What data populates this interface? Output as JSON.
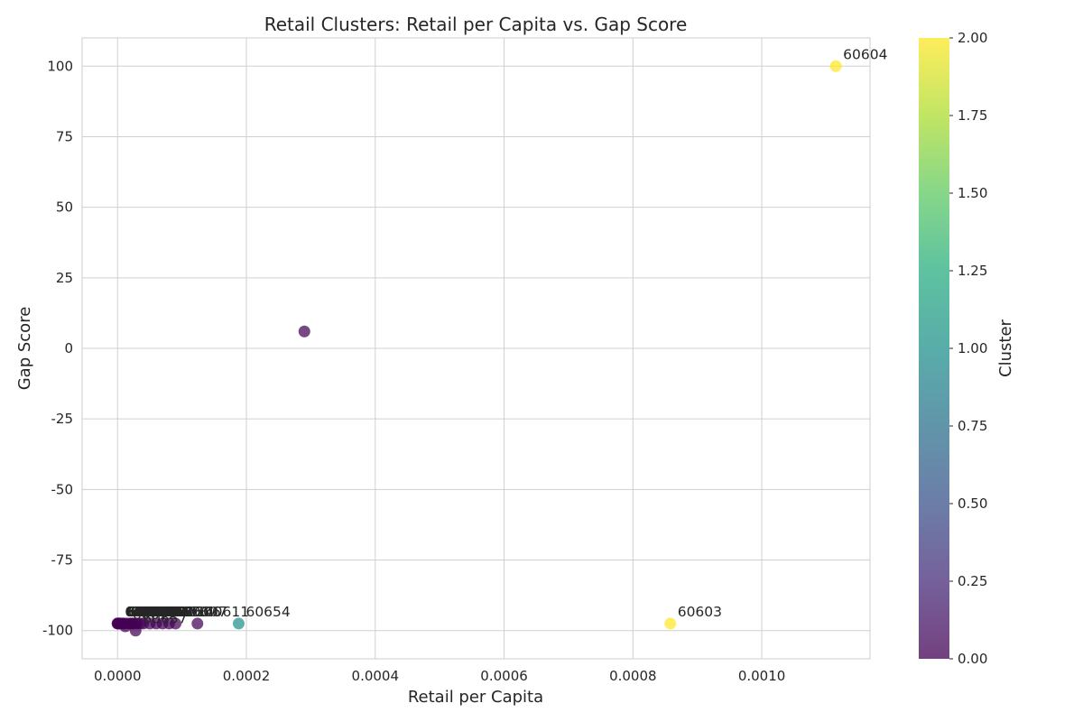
{
  "chart_data": {
    "type": "scatter",
    "title": "Retail Clusters: Retail per Capita vs. Gap Score",
    "xlabel": "Retail per Capita",
    "ylabel": "Gap Score",
    "xlim": [
      -5.5e-05,
      0.001168
    ],
    "ylim": [
      -110,
      110
    ],
    "x_ticks": [
      0.0,
      0.0002,
      0.0004,
      0.0006,
      0.0008,
      0.001
    ],
    "x_tick_labels": [
      "0.0000",
      "0.0002",
      "0.0004",
      "0.0006",
      "0.0008",
      "0.0010"
    ],
    "y_ticks": [
      -100,
      -75,
      -50,
      -25,
      0,
      25,
      50,
      75,
      100
    ],
    "y_tick_labels": [
      "-100",
      "-75",
      "-50",
      "-25",
      "0",
      "25",
      "50",
      "75",
      "100"
    ],
    "grid": true,
    "colorbar": {
      "label": "Cluster",
      "range": [
        0,
        2
      ],
      "ticks": [
        0.0,
        0.25,
        0.5,
        0.75,
        1.0,
        1.25,
        1.5,
        1.75,
        2.0
      ],
      "tick_labels": [
        "0.00",
        "0.25",
        "0.50",
        "0.75",
        "1.00",
        "1.25",
        "1.50",
        "1.75",
        "2.00"
      ],
      "colormap": "viridis"
    },
    "points": [
      {
        "x": 0.001115,
        "y": 100,
        "cluster": 2,
        "label": "60604"
      },
      {
        "x": 0.000858,
        "y": -97.5,
        "cluster": 2,
        "label": "60603"
      },
      {
        "x": 0.000188,
        "y": -97.5,
        "cluster": 1,
        "label": "60654"
      },
      {
        "x": 0.00029,
        "y": 6,
        "cluster": 0,
        "label": ""
      },
      {
        "x": 0.000124,
        "y": -97.5,
        "cluster": 0,
        "label": "60611"
      },
      {
        "x": 9e-05,
        "y": -97.5,
        "cluster": 0,
        "label": "60607"
      },
      {
        "x": 8e-05,
        "y": -97.5,
        "cluster": 0,
        "label": "60606"
      },
      {
        "x": 7e-05,
        "y": -97.5,
        "cluster": 0,
        "label": "60614"
      },
      {
        "x": 6e-05,
        "y": -97.5,
        "cluster": 0,
        "label": "60610"
      },
      {
        "x": 5e-05,
        "y": -97.5,
        "cluster": 0,
        "label": "60605"
      },
      {
        "x": 4e-05,
        "y": -97.5,
        "cluster": 0,
        "label": "60601"
      },
      {
        "x": 3.5e-05,
        "y": -97.5,
        "cluster": 0,
        "label": "60602"
      },
      {
        "x": 3e-05,
        "y": -97.5,
        "cluster": 0,
        "label": "60622"
      },
      {
        "x": 2.8e-05,
        "y": -100,
        "cluster": 0,
        "label": "60657"
      },
      {
        "x": 2.5e-05,
        "y": -97.5,
        "cluster": 0,
        "label": "60642"
      },
      {
        "x": 2.2e-05,
        "y": -97.5,
        "cluster": 0,
        "label": "60661"
      },
      {
        "x": 2e-05,
        "y": -97.5,
        "cluster": 0,
        "label": "60616"
      },
      {
        "x": 1.5e-05,
        "y": -97.5,
        "cluster": 0,
        "label": "60608"
      },
      {
        "x": 1.2e-05,
        "y": -98.5,
        "cluster": 0,
        "label": "60612"
      },
      {
        "x": 1e-05,
        "y": -97.5,
        "cluster": 0,
        "label": "60613"
      },
      {
        "x": 8e-06,
        "y": -97.5,
        "cluster": 0,
        "label": "60618"
      },
      {
        "x": 5e-06,
        "y": -97.5,
        "cluster": 0,
        "label": "60647"
      },
      {
        "x": 3e-06,
        "y": -97.5,
        "cluster": 0,
        "label": "60609"
      },
      {
        "x": 2e-06,
        "y": -97.5,
        "cluster": 0,
        "label": "60615"
      },
      {
        "x": 1e-06,
        "y": -97.5,
        "cluster": 0,
        "label": "60623"
      },
      {
        "x": 0.0,
        "y": -97.5,
        "cluster": 0,
        "label": "60620"
      },
      {
        "x": 0.0,
        "y": -97.5,
        "cluster": 0,
        "label": "60621"
      }
    ]
  }
}
